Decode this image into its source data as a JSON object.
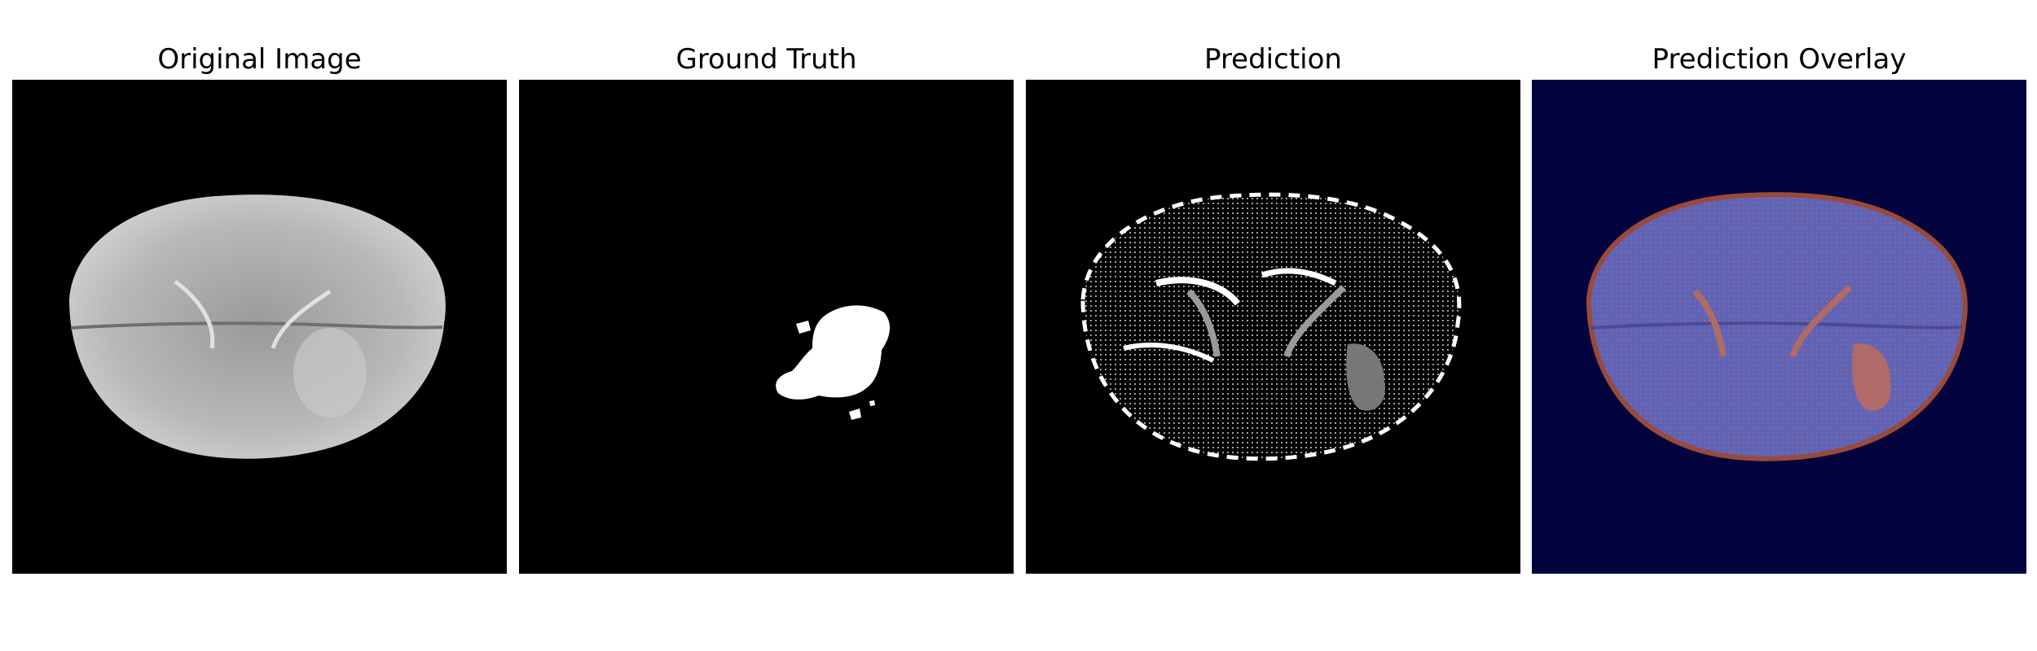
{
  "panels": [
    {
      "title": "Original Image"
    },
    {
      "title": "Ground Truth"
    },
    {
      "title": "Prediction"
    },
    {
      "title": "Prediction Overlay"
    }
  ],
  "colors": {
    "page_background": "#ffffff",
    "image_background": "#000000",
    "overlay_background": "#02023f",
    "overlay_brain_tint": "#5f63b8",
    "overlay_highlight": "#b06a68"
  }
}
